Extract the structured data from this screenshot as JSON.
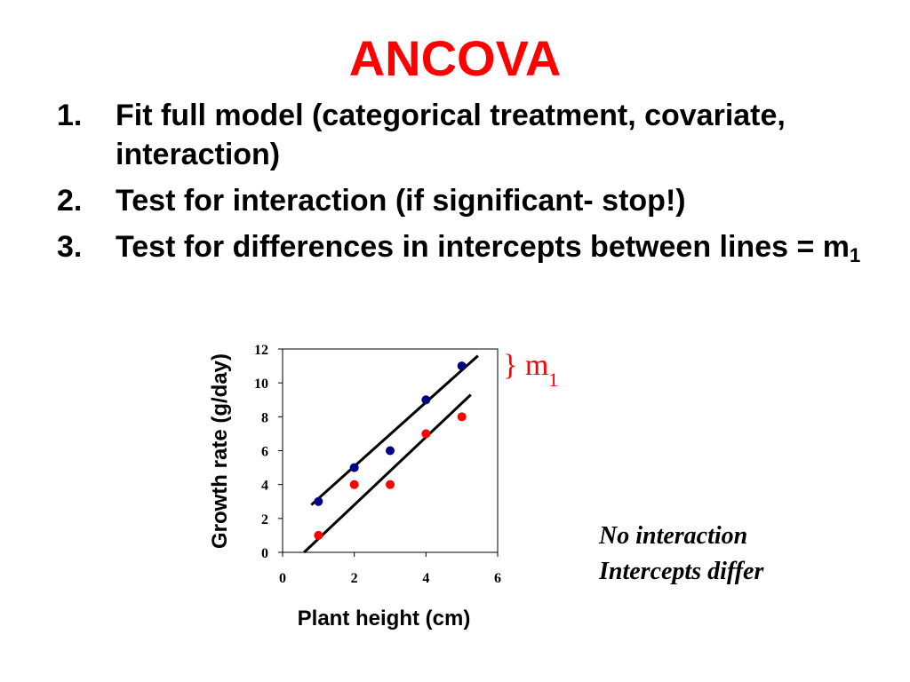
{
  "slide": {
    "title": "ANCOVA",
    "steps": [
      {
        "number": "1.",
        "text": "Fit full model (categorical treatment, covariate, interaction)"
      },
      {
        "number": "2.",
        "text": "Test for interaction (if significant- stop!)"
      },
      {
        "number": "3.",
        "text": "Test for differences in intercepts between lines = m",
        "subscript": "1"
      }
    ],
    "brace_label": "} m",
    "brace_subscript": "1",
    "notes": [
      "No interaction",
      "Intercepts differ"
    ]
  },
  "colors": {
    "title": "#ff0000",
    "series_blue": "#000080",
    "series_red": "#ff0000",
    "fit_line": "#000000",
    "brace": "#ff0000"
  },
  "chart_data": {
    "type": "scatter",
    "xlabel": "Plant height (cm)",
    "ylabel": "Growth rate (g/day)",
    "xlim": [
      0,
      6
    ],
    "ylim": [
      0,
      12
    ],
    "xticks": [
      0,
      2,
      4,
      6
    ],
    "yticks": [
      0,
      2,
      4,
      6,
      8,
      10,
      12
    ],
    "grid": false,
    "series": [
      {
        "color": "#000080",
        "x": [
          1,
          2,
          3,
          4,
          5
        ],
        "y": [
          3,
          5,
          6,
          9,
          11
        ],
        "fit": {
          "x": [
            0.8,
            5.45
          ],
          "y": [
            2.8,
            11.6
          ]
        }
      },
      {
        "color": "#ff0000",
        "x": [
          1,
          2,
          3,
          4,
          5
        ],
        "y": [
          1,
          4,
          4,
          7,
          8
        ],
        "fit": {
          "x": [
            0.6,
            5.25
          ],
          "y": [
            0.0,
            9.3
          ]
        }
      }
    ]
  }
}
